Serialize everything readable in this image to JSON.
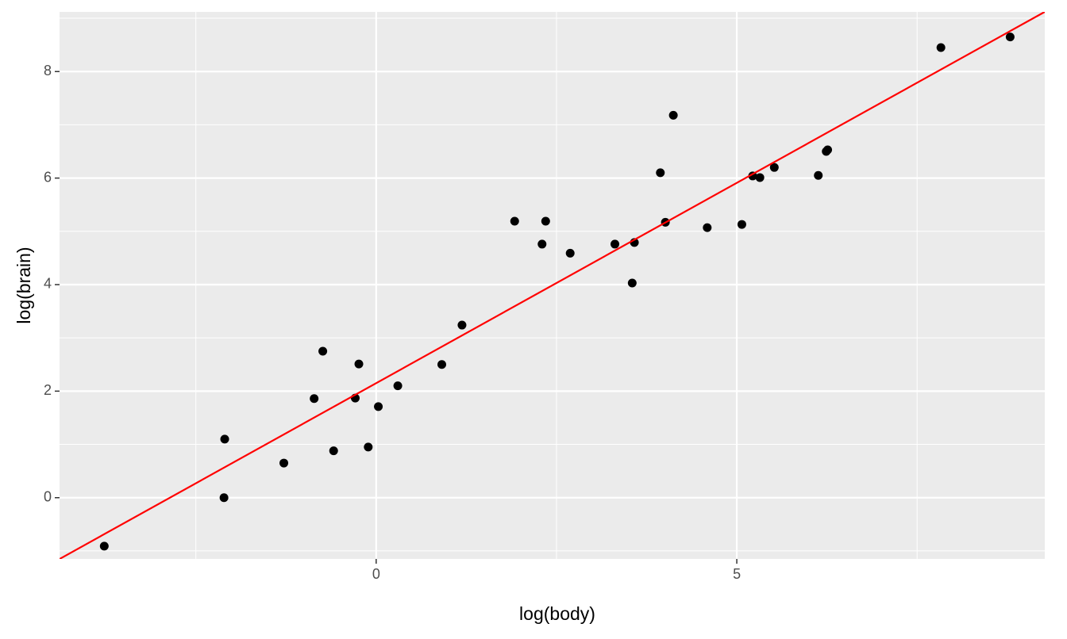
{
  "chart_data": {
    "type": "scatter",
    "x_label": "log(body)",
    "y_label": "log(brain)",
    "x": [
      -3.77,
      -2.1,
      -2.11,
      -1.28,
      -0.86,
      -0.74,
      -0.59,
      -0.29,
      -0.24,
      -0.11,
      0.03,
      0.3,
      0.91,
      1.19,
      1.92,
      2.3,
      2.35,
      2.69,
      3.31,
      3.55,
      3.58,
      3.94,
      4.01,
      4.12,
      4.59,
      5.07,
      5.22,
      5.32,
      5.52,
      6.13,
      6.24,
      6.26,
      7.83,
      8.79
    ],
    "y": [
      -0.91,
      1.1,
      0.0,
      0.65,
      1.86,
      2.75,
      0.88,
      1.87,
      2.51,
      0.95,
      1.71,
      2.1,
      2.5,
      3.24,
      5.19,
      4.76,
      5.19,
      4.59,
      4.76,
      4.03,
      4.79,
      6.1,
      5.17,
      7.18,
      5.07,
      5.13,
      6.04,
      6.01,
      6.2,
      6.05,
      6.5,
      6.53,
      8.45,
      8.65
    ],
    "color": "#000000",
    "fit": {
      "intercept": 2.15,
      "slope": 0.752,
      "color": "#ff0000"
    },
    "xlim": [
      -4.39,
      9.27
    ],
    "ylim": [
      -1.15,
      9.12
    ],
    "xticks": [
      0,
      5
    ],
    "yticks": [
      0,
      2,
      4,
      6,
      8
    ],
    "minor_xticks": [
      -2.5,
      2.5,
      7.5
    ],
    "minor_yticks": [
      -1,
      1,
      3,
      5,
      7,
      9
    ],
    "grid": true
  }
}
